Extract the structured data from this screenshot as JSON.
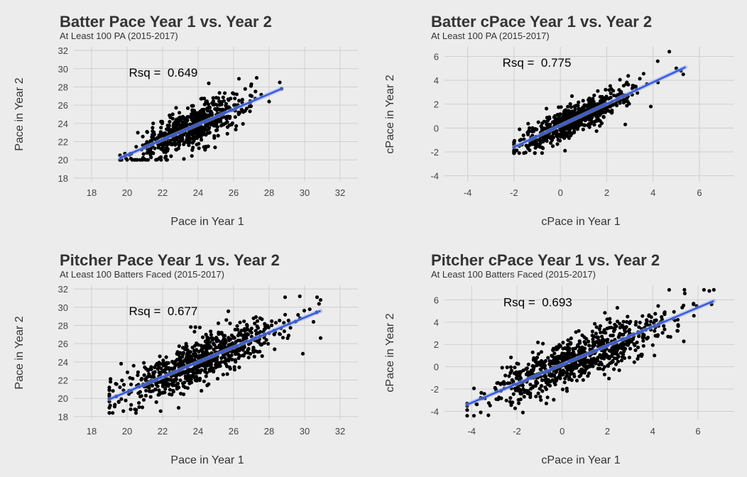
{
  "chart_data": [
    {
      "type": "scatter",
      "title": "Batter Pace Year 1 vs. Year 2",
      "subtitle": "At Least 100 PA (2015-2017)",
      "xlabel": "Pace in Year 1",
      "ylabel": "Pace in Year 2",
      "xlim": [
        17,
        33
      ],
      "ylim": [
        17.6,
        32.4
      ],
      "xticks": [
        18,
        20,
        22,
        24,
        26,
        28,
        30,
        32
      ],
      "yticks": [
        18,
        20,
        22,
        24,
        26,
        28,
        30,
        32
      ],
      "grid": true,
      "annotation": {
        "text": "Rsq =  0.649",
        "x": 20.1,
        "y": 29.6
      },
      "fit_line": {
        "x": [
          19.6,
          28.7
        ],
        "y": [
          20.2,
          27.8
        ],
        "color": "#3b5bdb"
      },
      "cloud": {
        "n": 650,
        "x_mean": 23.6,
        "x_sd": 1.55,
        "x_range": [
          19.6,
          28.7
        ],
        "slope": 0.835,
        "intercept": 3.83,
        "resid_sd": 1.05,
        "y_range": [
          20.0,
          29.0
        ]
      },
      "x": [
        19.6,
        28.7,
        28.6,
        27.3,
        27.0,
        26.3,
        28.0,
        25.6,
        23.2,
        21.9,
        21.2,
        24.6
      ],
      "y": [
        20.5,
        27.8,
        28.5,
        29.0,
        28.3,
        28.9,
        26.4,
        24.5,
        20.1,
        20.3,
        20.8,
        28.4
      ]
    },
    {
      "type": "scatter",
      "title": "Batter cPace Year 1 vs. Year 2",
      "subtitle": "At Least 100 PA (2015-2017)",
      "xlabel": "cPace in Year 1",
      "ylabel": "cPace in Year 2",
      "xlim": [
        -5,
        7.5
      ],
      "ylim": [
        -4.5,
        6.8
      ],
      "xticks": [
        -4,
        -2,
        0,
        2,
        4,
        6
      ],
      "yticks": [
        -4,
        -2,
        0,
        2,
        4,
        6
      ],
      "grid": true,
      "annotation": {
        "text": "Rsq =  0.775",
        "x": -2.5,
        "y": 5.5
      },
      "fit_line": {
        "x": [
          -2.0,
          5.4
        ],
        "y": [
          -1.6,
          5.1
        ],
        "color": "#3b5bdb"
      },
      "cloud": {
        "n": 650,
        "x_mean": 0.6,
        "x_sd": 1.15,
        "x_range": [
          -2.0,
          5.4
        ],
        "slope": 0.905,
        "intercept": 0.21,
        "resid_sd": 0.62,
        "y_range": [
          -2.1,
          6.4
        ]
      },
      "x": [
        -2.0,
        4.7,
        5.3,
        5.0,
        4.2,
        2.8,
        3.9,
        5.2,
        0.2,
        -1.1
      ],
      "y": [
        -1.4,
        6.4,
        4.5,
        5.0,
        5.6,
        0.3,
        1.8,
        4.8,
        -1.9,
        -2.1
      ]
    },
    {
      "type": "scatter",
      "title": "Pitcher Pace Year 1 vs. Year 2",
      "subtitle": "At Least 100 Batters Faced (2015-2017)",
      "xlabel": "Pace in Year 1",
      "ylabel": "Pace in Year 2",
      "xlim": [
        17,
        33
      ],
      "ylim": [
        17.6,
        32.4
      ],
      "xticks": [
        18,
        20,
        22,
        24,
        26,
        28,
        30,
        32
      ],
      "yticks": [
        18,
        20,
        22,
        24,
        26,
        28,
        30,
        32
      ],
      "grid": true,
      "annotation": {
        "text": "Rsq =  0.677",
        "x": 20.1,
        "y": 29.6
      },
      "fit_line": {
        "x": [
          19.0,
          30.9
        ],
        "y": [
          19.9,
          29.6
        ],
        "color": "#3b5bdb"
      },
      "cloud": {
        "n": 800,
        "x_mean": 24.2,
        "x_sd": 2.3,
        "x_range": [
          19.0,
          30.9
        ],
        "slope": 0.815,
        "intercept": 4.41,
        "resid_sd": 1.25,
        "y_range": [
          18.4,
          31.2
        ]
      },
      "x": [
        19.0,
        30.9,
        30.7,
        30.5,
        29.9,
        28.9,
        20.5,
        19.3,
        20.2
      ],
      "y": [
        21.2,
        30.8,
        31.1,
        28.4,
        24.9,
        31.1,
        18.4,
        19.1,
        18.8
      ]
    },
    {
      "type": "scatter",
      "title": "Pitcher cPace Year 1 vs. Year 2",
      "subtitle": "At Least 100 Batters Faced (2015-2017)",
      "xlabel": "cPace in Year 1",
      "ylabel": "cPace in Year 2",
      "xlim": [
        -5.2,
        7.6
      ],
      "ylim": [
        -4.8,
        7.3
      ],
      "xticks": [
        -4,
        -2,
        0,
        2,
        4,
        6
      ],
      "yticks": [
        -4,
        -2,
        0,
        2,
        4,
        6
      ],
      "grid": true,
      "annotation": {
        "text": "Rsq =  0.693",
        "x": -2.6,
        "y": 5.8
      },
      "fit_line": {
        "x": [
          -4.2,
          6.7
        ],
        "y": [
          -3.4,
          5.9
        ],
        "color": "#3b5bdb"
      },
      "cloud": {
        "n": 800,
        "x_mean": 0.7,
        "x_sd": 1.9,
        "x_range": [
          -4.2,
          6.7
        ],
        "slope": 0.853,
        "intercept": 0.18,
        "resid_sd": 1.05,
        "y_range": [
          -4.4,
          6.9
        ]
      },
      "x": [
        -4.2,
        6.7,
        6.5,
        5.4,
        6.6,
        5.8,
        -3.9,
        -3.6,
        4.9
      ],
      "y": [
        -3.3,
        6.9,
        6.8,
        6.9,
        5.6,
        5.6,
        -4.4,
        -4.1,
        4.3
      ]
    }
  ]
}
